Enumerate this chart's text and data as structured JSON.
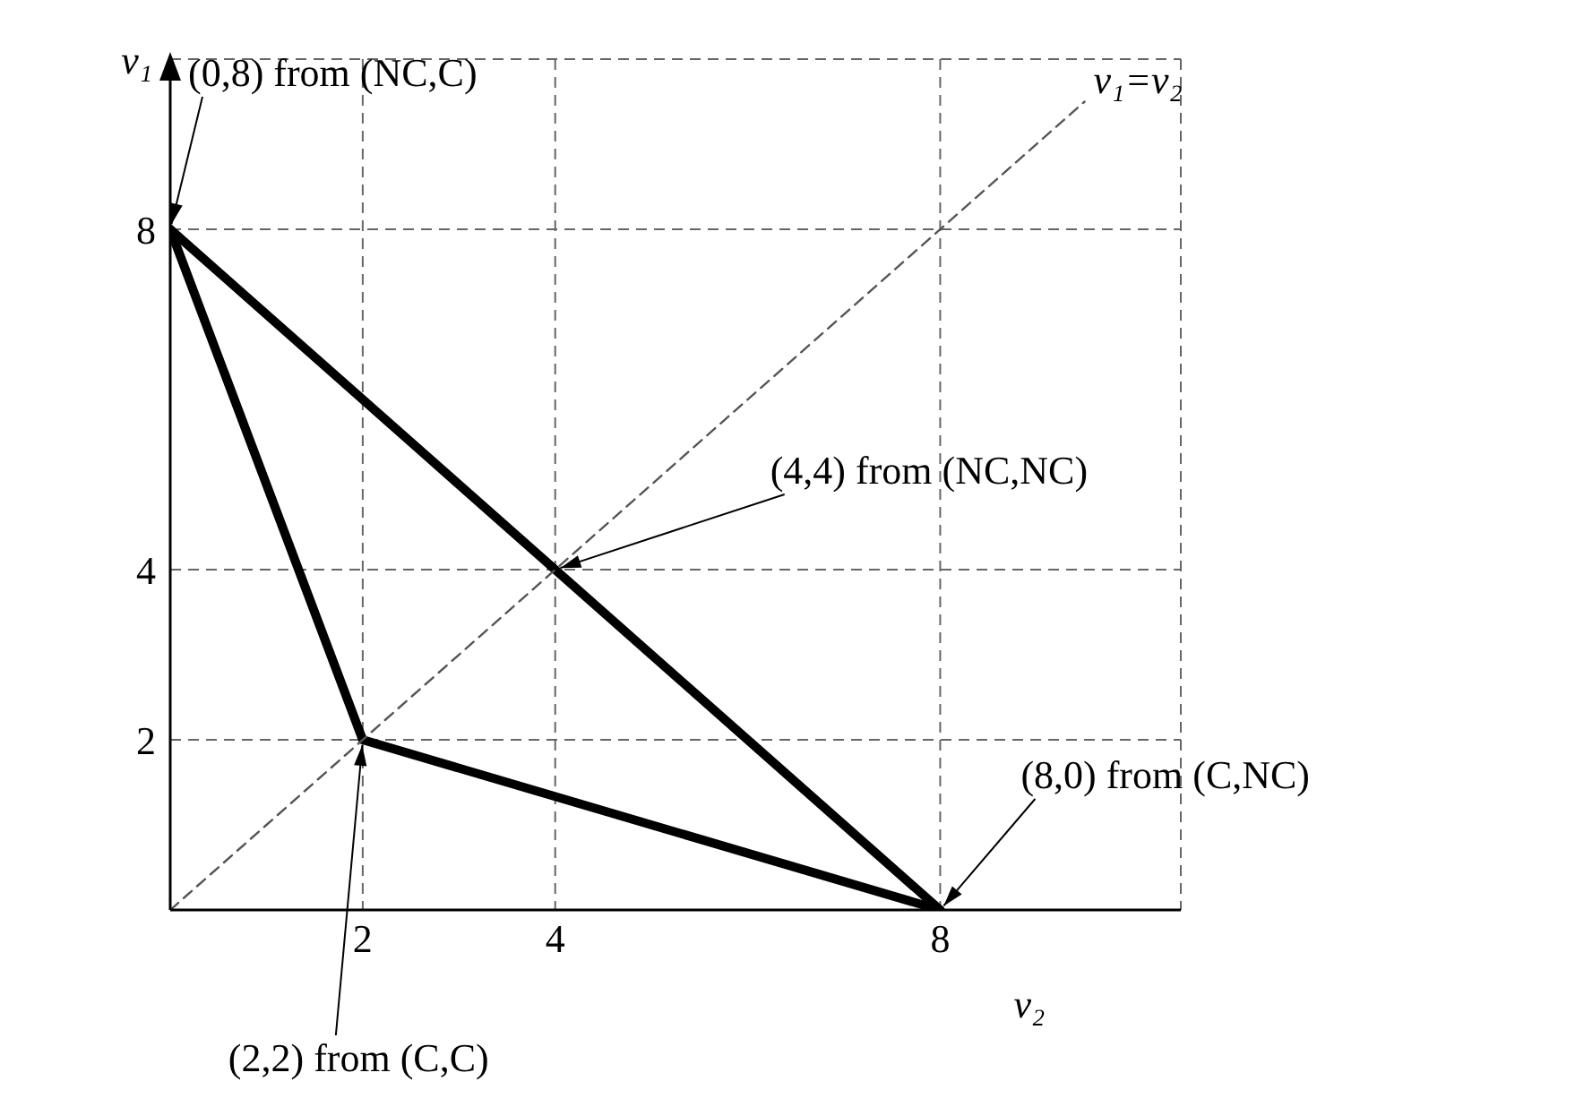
{
  "chart_data": {
    "type": "line",
    "xlabel": "v₂",
    "ylabel": "v₁",
    "xlim": [
      0,
      10.5
    ],
    "ylim": [
      0,
      10
    ],
    "xticks": [
      2,
      4,
      8
    ],
    "yticks": [
      2,
      4,
      8
    ],
    "grid": true,
    "marker": "none",
    "legend": false,
    "series": [
      {
        "color": "#000000",
        "x": [
          0,
          8
        ],
        "values": [
          8,
          0
        ],
        "line_style": "solid"
      },
      {
        "color": "#000000",
        "x": [
          2,
          8
        ],
        "values": [
          2,
          0
        ],
        "line_style": "solid"
      },
      {
        "color": "#000000",
        "x": [
          0,
          2
        ],
        "values": [
          8,
          2
        ],
        "line_style": "solid"
      },
      {
        "name": "v₁=v₂",
        "color": "#555555",
        "x": [
          0,
          9.5
        ],
        "values": [
          0,
          9.5
        ],
        "line_style": "dashed"
      }
    ],
    "annotations": [
      {
        "text": "(0,8) from (NC,C)",
        "x": 0,
        "y": 8
      },
      {
        "text": "(4,4) from (NC,NC)",
        "x": 4,
        "y": 4
      },
      {
        "text": "(8,0) from (C,NC)",
        "x": 8,
        "y": 0
      },
      {
        "text": "(2,2) from (C,C)",
        "x": 2,
        "y": 2
      }
    ]
  }
}
